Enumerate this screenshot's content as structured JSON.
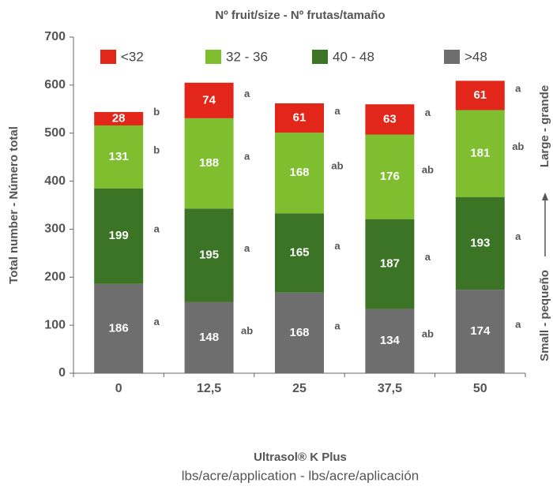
{
  "chart_data": {
    "type": "stacked_bar",
    "title": "Nº fruit/size - Nº frutas/tamaño",
    "y_label": "Total number - Número total",
    "x_label": "Ultrasol® K Plus",
    "x_sublabel": "lbs/acre/application - lbs/acre/aplicación",
    "right_label_top": "Large - grande",
    "right_label_bottom": "Small - pequeño",
    "categories": [
      "0",
      "12,5",
      "25",
      "37,5",
      "50"
    ],
    "series": [
      {
        "name": ">48",
        "color": "#6e6e6e",
        "values": [
          186,
          148,
          168,
          134,
          174
        ],
        "letters": [
          "a",
          "ab",
          "a",
          "ab",
          "a"
        ]
      },
      {
        "name": "40 - 48",
        "color": "#3b7425",
        "values": [
          199,
          195,
          165,
          187,
          193
        ],
        "letters": [
          "a",
          "a",
          "a",
          "a",
          "a"
        ]
      },
      {
        "name": "32 - 36",
        "color": "#7fbe2f",
        "values": [
          131,
          188,
          168,
          176,
          181
        ],
        "letters": [
          "b",
          "a",
          "ab",
          "ab",
          "ab"
        ]
      },
      {
        "name": "<32",
        "color": "#e2261a",
        "values": [
          28,
          74,
          61,
          63,
          61
        ],
        "letters": [
          "b",
          "a",
          "a",
          "a",
          "a"
        ]
      }
    ],
    "ylim": [
      0,
      700
    ],
    "yticks": [
      0,
      100,
      200,
      300,
      400,
      500,
      600,
      700
    ]
  }
}
